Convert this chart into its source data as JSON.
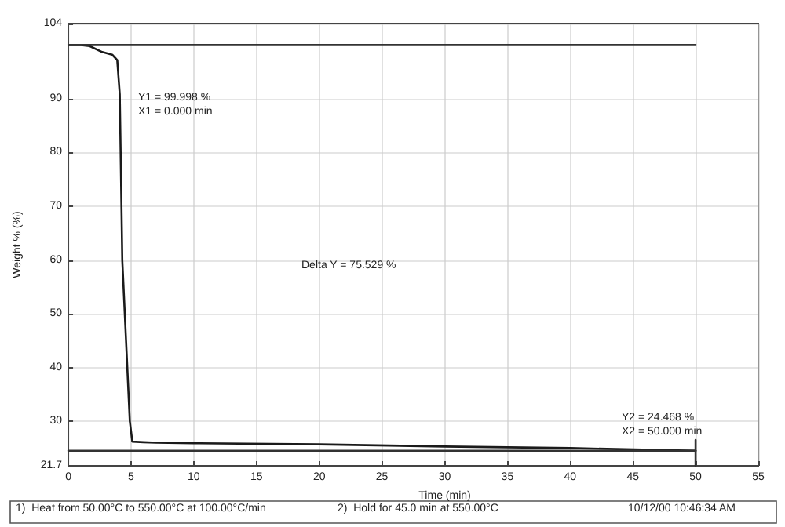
{
  "chart_data": {
    "type": "line",
    "xlabel": "Time (min)",
    "ylabel": "Weight % (%)",
    "xlim": [
      0,
      55
    ],
    "xticks": [
      0,
      5,
      10,
      15,
      20,
      25,
      30,
      35,
      40,
      45,
      50,
      55
    ],
    "ylim": [
      21.7,
      104
    ],
    "yticks": [
      21.7,
      30,
      40,
      50,
      60,
      70,
      80,
      90,
      104
    ],
    "grid": true,
    "marker": "none",
    "line_style": "solid",
    "series": [
      {
        "color": "#1a1a1a",
        "x": [
          0,
          1,
          1.7,
          2.7,
          3.5,
          3.9,
          4.1,
          4.3,
          4.6,
          4.9,
          5.1,
          6,
          7,
          10,
          20,
          30,
          40,
          50
        ],
        "values": [
          100,
          100,
          99.8,
          98.7,
          98.2,
          97.2,
          90.8,
          60,
          45,
          30,
          26.2,
          26.1,
          26,
          25.9,
          25.7,
          25.3,
          25,
          24.5
        ]
      },
      {
        "color": "#333333",
        "x": [
          0,
          50
        ],
        "values": [
          100,
          100
        ]
      },
      {
        "color": "#333333",
        "x": [
          0,
          50
        ],
        "values": [
          24.5,
          24.5
        ]
      },
      {
        "color": "#333333",
        "x": [
          50,
          50
        ],
        "values": [
          21.7,
          26.5
        ]
      }
    ],
    "annotations": [
      "Y1 = 99.998 %\nX1 = 0.000 min",
      "Delta Y = 75.529 %",
      "Y2 = 24.468 %\nX2 = 50.000 min",
      "1)  Heat from 50.00°C to 550.00°C at 100.00°C/min",
      "2)  Hold for 45.0 min at 550.00°C",
      "10/12/00 10:46:34 AM"
    ]
  }
}
